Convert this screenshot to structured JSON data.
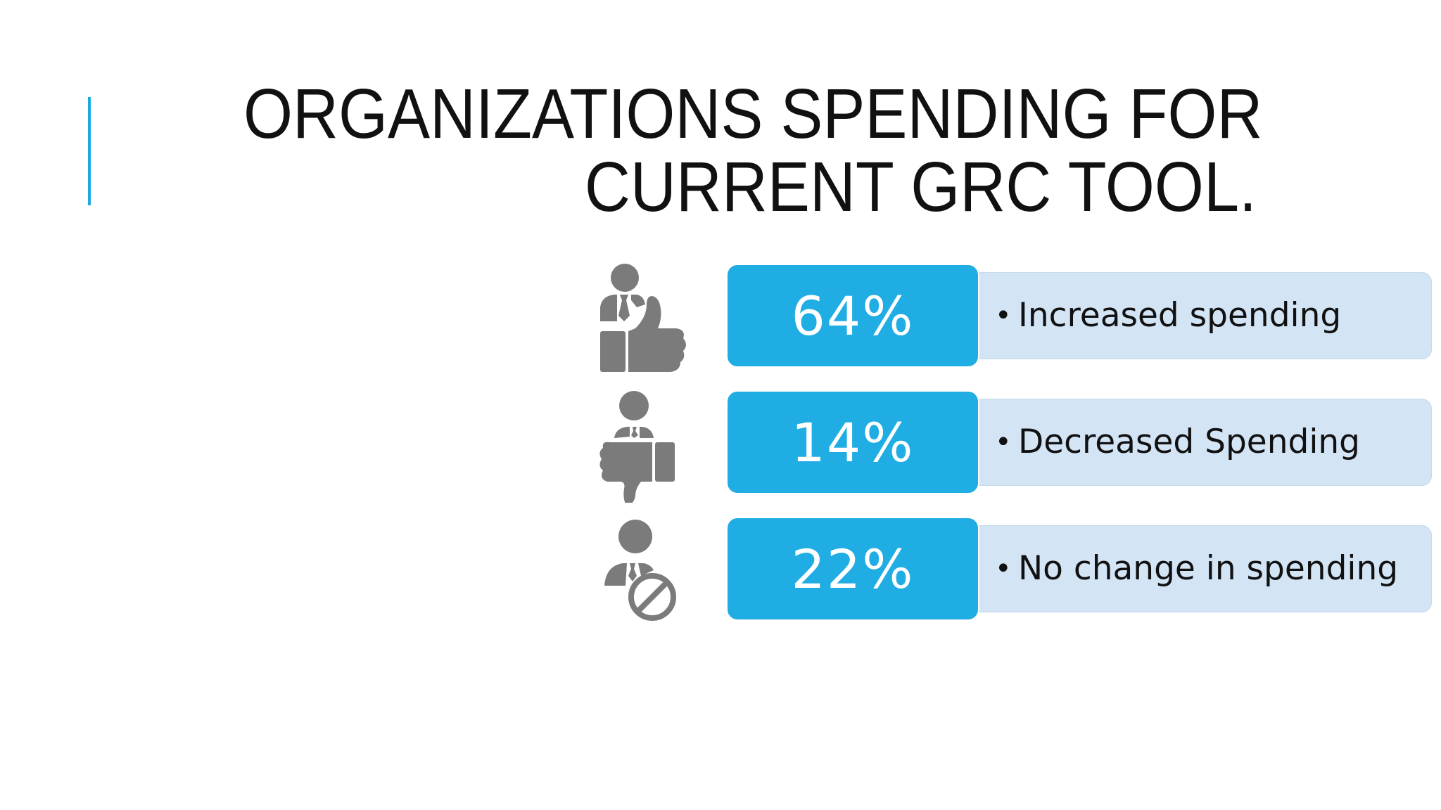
{
  "slide": {
    "title_lines": [
      "ORGANIZATIONS SPENDING FOR",
      "CURRENT GRC TOOL."
    ],
    "colors": {
      "accent": "#1ba9e1",
      "value_box": "#1fade3",
      "label_box": "#d3e4f5",
      "icon": "#7b7b7b",
      "title_text": "#111111"
    },
    "rows": [
      {
        "icon": "person-thumbs-up-icon",
        "value": "64%",
        "bullet": "•",
        "label": "Increased spending"
      },
      {
        "icon": "person-thumbs-down-icon",
        "value": "14%",
        "bullet": "•",
        "label": "Decreased Spending"
      },
      {
        "icon": "person-no-sign-icon",
        "value": "22%",
        "bullet": "•",
        "label": "No change in spending"
      }
    ]
  }
}
